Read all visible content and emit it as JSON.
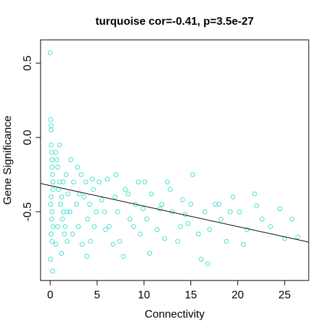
{
  "chart_data": {
    "type": "scatter",
    "title": "turquoise cor=-0.41, p=3.5e-27",
    "x_label": "Connectivity",
    "y_label": "Gene Significance",
    "color": "#40E0D0",
    "xlim": [
      -1.03,
      27.57
    ],
    "ylim": [
      -0.963,
      0.657
    ],
    "xticks": [
      0,
      5,
      10,
      15,
      20,
      25
    ],
    "yticks": [
      -0.5,
      {
        "value": 0,
        "label": "0.0"
      },
      0.5
    ],
    "fit": {
      "intercept": -0.324,
      "slope": -0.0138
    },
    "x": [
      0,
      0.05,
      0.1,
      0.1,
      0.15,
      0.2,
      0.2,
      0.25,
      0.3,
      0.3,
      0.1,
      0.05,
      0.2,
      0.15,
      0.3,
      0.1,
      0.2,
      0.05,
      0.25,
      0.1,
      0.6,
      0.8,
      1.0,
      1.2,
      1.4,
      1.6,
      1.8,
      0.7,
      0.9,
      1.1,
      1.3,
      1.5,
      1.7,
      1.9,
      0.6,
      1.0,
      1.4,
      1.8,
      0.8,
      1.2,
      2.2,
      2.5,
      2.8,
      3.0,
      3.3,
      3.6,
      4.0,
      4.3,
      4.6,
      4.9,
      2.4,
      2.9,
      3.4,
      3.8,
      4.2,
      4.7,
      2.1,
      3.1,
      3.9,
      4.5,
      5.2,
      5.8,
      6.3,
      6.9,
      7.4,
      8.0,
      8.5,
      9.1,
      9.6,
      5.5,
      6.1,
      6.7,
      7.2,
      7.8,
      8.3,
      8.9,
      9.4,
      9.9,
      5.9,
      7.0,
      10.3,
      10.8,
      11.4,
      11.9,
      12.5,
      13.0,
      13.6,
      14.1,
      14.7,
      15.2,
      15.8,
      10.6,
      11.7,
      12.8,
      13.9,
      15.0,
      16.1,
      10.1,
      12.2,
      14.4,
      16.5,
      17.0,
      17.6,
      18.2,
      18.8,
      19.5,
      20.2,
      21.0,
      21.8,
      22.6,
      23.5,
      24.5,
      25.0,
      25.8,
      26.4,
      16.8,
      18.0,
      19.2,
      20.6,
      22.0
    ],
    "values": [
      0.57,
      0.12,
      0.05,
      -0.05,
      -0.1,
      -0.15,
      -0.2,
      -0.25,
      -0.3,
      -0.35,
      -0.4,
      -0.45,
      -0.5,
      -0.55,
      -0.6,
      -0.65,
      -0.7,
      -0.82,
      -0.9,
      0.08,
      -0.1,
      -0.2,
      -0.3,
      -0.4,
      -0.5,
      -0.6,
      -0.7,
      -0.15,
      -0.35,
      -0.45,
      -0.55,
      -0.65,
      -0.25,
      -0.38,
      -0.72,
      -0.05,
      -0.3,
      -0.5,
      -0.6,
      -0.78,
      -0.15,
      -0.3,
      -0.45,
      -0.6,
      -0.25,
      -0.4,
      -0.55,
      -0.7,
      -0.35,
      -0.5,
      -0.65,
      -0.2,
      -0.72,
      -0.3,
      -0.45,
      -0.6,
      -0.5,
      -0.38,
      -0.8,
      -0.28,
      -0.3,
      -0.5,
      -0.6,
      -0.4,
      -0.7,
      -0.35,
      -0.55,
      -0.45,
      -0.65,
      -0.42,
      -0.28,
      -0.72,
      -0.5,
      -0.8,
      -0.38,
      -0.6,
      -0.3,
      -0.48,
      -0.62,
      -0.25,
      -0.55,
      -0.38,
      -0.62,
      -0.45,
      -0.3,
      -0.5,
      -0.7,
      -0.42,
      -0.58,
      -0.25,
      -0.65,
      -0.78,
      -0.48,
      -0.35,
      -0.6,
      -0.45,
      -0.82,
      -0.3,
      -0.68,
      -0.52,
      -0.5,
      -0.62,
      -0.45,
      -0.55,
      -0.7,
      -0.4,
      -0.5,
      -0.62,
      -0.38,
      -0.55,
      -0.6,
      -0.48,
      -0.68,
      -0.55,
      -0.67,
      -0.85,
      -0.45,
      -0.5,
      -0.72,
      -0.46
    ]
  }
}
